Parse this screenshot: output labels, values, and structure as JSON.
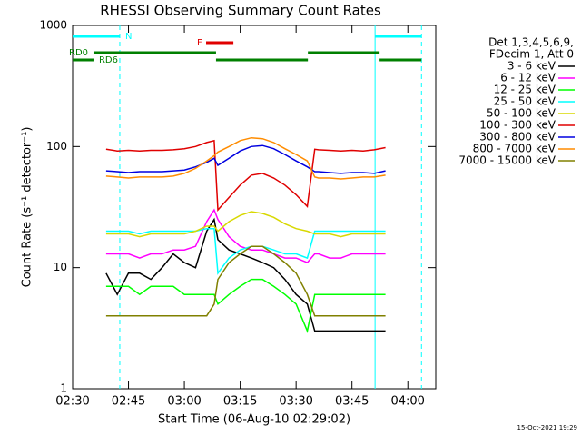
{
  "chart_data": {
    "type": "line",
    "title": "RHESSI Observing Summary Count Rates",
    "x_label": "Start Time (06-Aug-10 02:29:02)",
    "y_label": "Count Rate (s⁻¹ detector⁻¹)",
    "legend_header": [
      "Det 1,3,4,5,6,9,",
      "FDecim 1, Att 0"
    ],
    "footer": "15-Oct-2021 19:29",
    "y_scale": "log",
    "xlim": [
      "02:30",
      "04:07:30"
    ],
    "xticks": [
      "02:30",
      "02:45",
      "03:00",
      "03:15",
      "03:30",
      "03:45",
      "04:00"
    ],
    "ylim": [
      1,
      1000
    ],
    "yticks": [
      1,
      10,
      100,
      1000
    ],
    "x": [
      "02:39",
      "02:42",
      "02:45",
      "02:48",
      "02:51",
      "02:54",
      "02:57",
      "03:00",
      "03:03",
      "03:06",
      "03:08",
      "03:09",
      "03:12",
      "03:15",
      "03:18",
      "03:21",
      "03:24",
      "03:27",
      "03:30",
      "03:33",
      "03:35",
      "03:36",
      "03:39",
      "03:42",
      "03:45",
      "03:48",
      "03:51",
      "03:54"
    ],
    "series": [
      {
        "name": "3 - 6 keV",
        "color": "#000000",
        "values": [
          9,
          6,
          9,
          9,
          8,
          10,
          13,
          11,
          10,
          20,
          25,
          17,
          14,
          13,
          12,
          11,
          10,
          8,
          6,
          5,
          3,
          3,
          3,
          3,
          3,
          3,
          3,
          3
        ]
      },
      {
        "name": "6 - 12 keV",
        "color": "#ff00ff",
        "values": [
          13,
          13,
          13,
          12,
          13,
          13,
          14,
          14,
          15,
          24,
          30,
          25,
          18,
          15,
          14,
          14,
          13,
          12,
          12,
          11,
          13,
          13,
          12,
          12,
          13,
          13,
          13,
          13
        ]
      },
      {
        "name": "12 - 25 keV",
        "color": "#00ff00",
        "values": [
          7,
          7,
          7,
          6,
          7,
          7,
          7,
          6,
          6,
          6,
          6,
          5,
          6,
          7,
          8,
          8,
          7,
          6,
          5,
          3,
          6,
          6,
          6,
          6,
          6,
          6,
          6,
          6
        ]
      },
      {
        "name": "25 - 50 keV",
        "color": "#00ffff",
        "values": [
          20,
          20,
          20,
          19,
          20,
          20,
          20,
          20,
          20,
          21,
          21,
          9,
          12,
          14,
          15,
          15,
          14,
          13,
          13,
          12,
          20,
          20,
          20,
          20,
          20,
          20,
          20,
          20
        ]
      },
      {
        "name": "50 - 100 keV",
        "color": "#d8d800",
        "values": [
          19,
          19,
          19,
          18,
          19,
          19,
          19,
          19,
          20,
          22,
          22,
          20,
          24,
          27,
          29,
          28,
          26,
          23,
          21,
          20,
          19,
          19,
          19,
          18,
          19,
          19,
          19,
          19
        ]
      },
      {
        "name": "100 - 300 keV",
        "color": "#e00000",
        "values": [
          95,
          92,
          93,
          92,
          93,
          93,
          94,
          96,
          100,
          108,
          112,
          30,
          38,
          48,
          58,
          60,
          55,
          48,
          40,
          32,
          95,
          94,
          93,
          92,
          93,
          92,
          94,
          98
        ]
      },
      {
        "name": "300 - 800 keV",
        "color": "#0000e0",
        "values": [
          63,
          62,
          61,
          62,
          62,
          62,
          63,
          64,
          68,
          74,
          80,
          70,
          80,
          92,
          100,
          102,
          96,
          86,
          76,
          68,
          62,
          62,
          61,
          60,
          61,
          61,
          60,
          63
        ]
      },
      {
        "name": "800 - 7000 keV",
        "color": "#ff8c00",
        "values": [
          57,
          56,
          55,
          56,
          56,
          56,
          57,
          60,
          66,
          76,
          84,
          90,
          100,
          112,
          118,
          116,
          108,
          96,
          86,
          76,
          56,
          55,
          55,
          54,
          55,
          56,
          56,
          58
        ]
      },
      {
        "name": "7000 - 15000 keV",
        "color": "#808000",
        "values": [
          4,
          4,
          4,
          4,
          4,
          4,
          4,
          4,
          4,
          4,
          5,
          8,
          11,
          13,
          15,
          15,
          13,
          11,
          9,
          6,
          4,
          4,
          4,
          4,
          4,
          4,
          4,
          4
        ]
      }
    ],
    "flags": [
      {
        "label": "N",
        "color": "#00ffff",
        "spans": [
          [
            "02:30",
            "02:42:40"
          ],
          [
            "03:51:12",
            "04:03:40"
          ]
        ]
      },
      {
        "label": "F",
        "color": "#e00000",
        "spans": [
          [
            "03:05:50",
            "03:13:10"
          ]
        ]
      },
      {
        "label": "RD0",
        "color": "#008000",
        "spans": [
          [
            "02:35:36",
            "03:08:30"
          ],
          [
            "03:33:10",
            "03:52:25"
          ]
        ]
      },
      {
        "label": "RD6",
        "color": "#008000",
        "spans": [
          [
            "02:30",
            "02:35:36"
          ],
          [
            "03:08:30",
            "03:33:10"
          ],
          [
            "03:52:25",
            "04:03:40"
          ]
        ]
      }
    ]
  }
}
